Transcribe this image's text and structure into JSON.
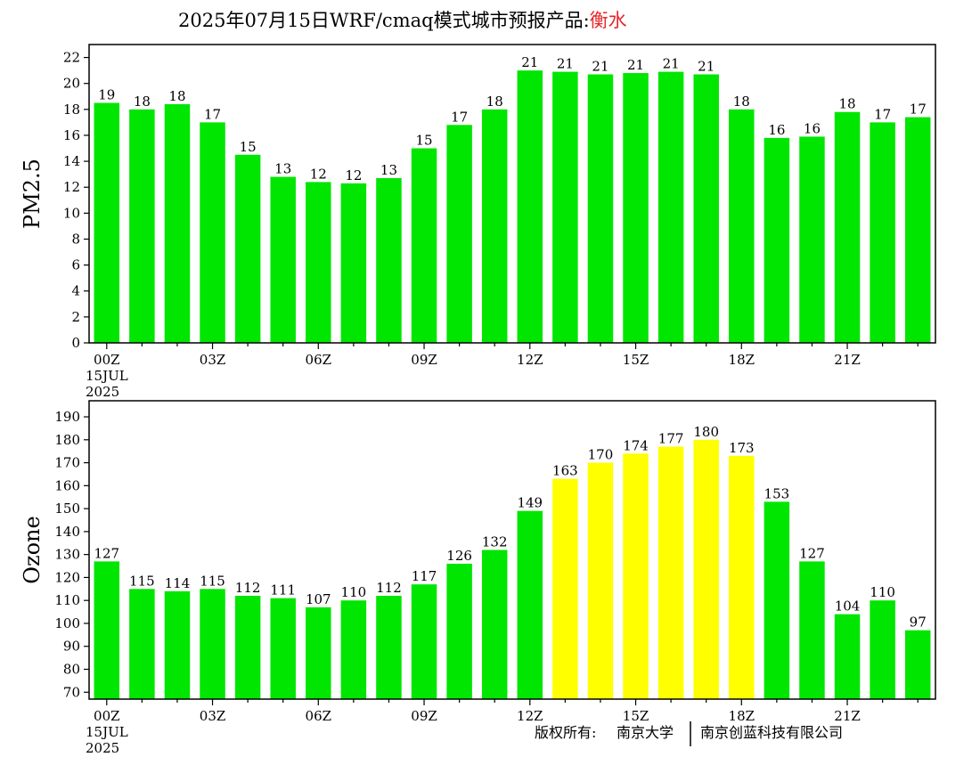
{
  "title": {
    "prefix": "2025年07月15日WRF/cmaq模式城市预报产品:",
    "city": "衡水",
    "city_color": "#e8262a"
  },
  "copyright": {
    "label": "版权所有:",
    "org1": "南京大学",
    "org2": "南京创蓝科技有限公司"
  },
  "colors": {
    "green": "#00e600",
    "yellow": "#ffff00"
  },
  "chart_data": [
    {
      "type": "bar",
      "ylabel": "PM2.5",
      "ylim": [
        0,
        23
      ],
      "yticks": [
        0,
        2,
        4,
        6,
        8,
        10,
        12,
        14,
        16,
        18,
        20,
        22
      ],
      "x_tick_labels": [
        "00Z",
        "03Z",
        "06Z",
        "09Z",
        "12Z",
        "15Z",
        "18Z",
        "21Z"
      ],
      "x_tick_hours": [
        0,
        3,
        6,
        9,
        12,
        15,
        18,
        21
      ],
      "start_date_lines": [
        "15JUL",
        "2025"
      ],
      "hours": [
        0,
        1,
        2,
        3,
        4,
        5,
        6,
        7,
        8,
        9,
        10,
        11,
        12,
        13,
        14,
        15,
        16,
        17,
        18,
        19,
        20,
        21,
        22,
        23
      ],
      "values": [
        18.5,
        18.0,
        18.4,
        17.0,
        14.5,
        12.8,
        12.4,
        12.3,
        12.7,
        15.0,
        16.8,
        18.0,
        21.0,
        20.9,
        20.7,
        20.8,
        20.9,
        20.7,
        18.0,
        15.8,
        15.9,
        17.8,
        17.0,
        17.4
      ],
      "labels": [
        "19",
        "18",
        "18",
        "17",
        "15",
        "13",
        "12",
        "12",
        "13",
        "15",
        "17",
        "18",
        "21",
        "21",
        "21",
        "21",
        "21",
        "21",
        "18",
        "16",
        "16",
        "18",
        "17",
        "17"
      ],
      "bar_colors": [
        "green",
        "green",
        "green",
        "green",
        "green",
        "green",
        "green",
        "green",
        "green",
        "green",
        "green",
        "green",
        "green",
        "green",
        "green",
        "green",
        "green",
        "green",
        "green",
        "green",
        "green",
        "green",
        "green",
        "green"
      ]
    },
    {
      "type": "bar",
      "ylabel": "Ozone",
      "ylim": [
        67,
        197
      ],
      "yticks": [
        70,
        80,
        90,
        100,
        110,
        120,
        130,
        140,
        150,
        160,
        170,
        180,
        190
      ],
      "x_tick_labels": [
        "00Z",
        "03Z",
        "06Z",
        "09Z",
        "12Z",
        "15Z",
        "18Z",
        "21Z"
      ],
      "x_tick_hours": [
        0,
        3,
        6,
        9,
        12,
        15,
        18,
        21
      ],
      "start_date_lines": [
        "15JUL",
        "2025"
      ],
      "hours": [
        0,
        1,
        2,
        3,
        4,
        5,
        6,
        7,
        8,
        9,
        10,
        11,
        12,
        13,
        14,
        15,
        16,
        17,
        18,
        19,
        20,
        21,
        22,
        23
      ],
      "values": [
        127,
        115,
        114,
        115,
        112,
        111,
        107,
        110,
        112,
        117,
        126,
        132,
        149,
        163,
        170,
        174,
        177,
        180,
        173,
        153,
        127,
        104,
        110,
        97
      ],
      "labels": [
        "127",
        "115",
        "114",
        "115",
        "112",
        "111",
        "107",
        "110",
        "112",
        "117",
        "126",
        "132",
        "149",
        "163",
        "170",
        "174",
        "177",
        "180",
        "173",
        "153",
        "127",
        "104",
        "110",
        "97"
      ],
      "bar_colors": [
        "green",
        "green",
        "green",
        "green",
        "green",
        "green",
        "green",
        "green",
        "green",
        "green",
        "green",
        "green",
        "green",
        "yellow",
        "yellow",
        "yellow",
        "yellow",
        "yellow",
        "yellow",
        "green",
        "green",
        "green",
        "green",
        "green"
      ]
    }
  ]
}
